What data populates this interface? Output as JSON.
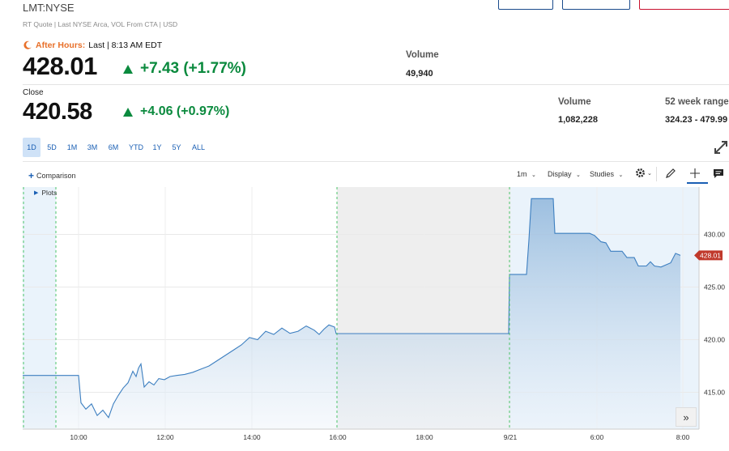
{
  "header": {
    "ticker": "LMT:NYSE",
    "subtitle": "RT Quote | Last NYSE Arca, VOL From CTA | USD"
  },
  "after_hours": {
    "label": "After Hours:",
    "time": "Last | 8:13 AM EDT",
    "price": "428.01",
    "change": "+7.43 (+1.77%)",
    "volume_label": "Volume",
    "volume": "49,940"
  },
  "close": {
    "label": "Close",
    "price": "420.58",
    "change": "+4.06 (+0.97%)",
    "volume_label": "Volume",
    "volume": "1,082,228",
    "range_label": "52 week range",
    "range": "324.23 - 479.99"
  },
  "ranges": [
    "1D",
    "5D",
    "1M",
    "3M",
    "6M",
    "YTD",
    "1Y",
    "5Y",
    "ALL"
  ],
  "active_range": "1D",
  "toolbar": {
    "comparison": "Comparison",
    "interval": "1m",
    "display": "Display",
    "studies": "Studies",
    "plots": "Plots"
  },
  "colors": {
    "up": "#0b8a3e",
    "accent": "#1a5fb4",
    "line": "#3d7fc0",
    "price_tag": "#c0392b",
    "after_hours": "#e8702a"
  },
  "chart_data": {
    "type": "area",
    "series": [
      {
        "values": [
          [
            0,
            416.6
          ],
          [
            69,
            416.6
          ],
          [
            72,
            414.0
          ],
          [
            78,
            413.4
          ],
          [
            85,
            413.9
          ],
          [
            92,
            412.8
          ],
          [
            99,
            413.3
          ],
          [
            106,
            412.6
          ],
          [
            112,
            413.9
          ],
          [
            118,
            414.7
          ],
          [
            124,
            415.4
          ],
          [
            130,
            415.9
          ],
          [
            136,
            417.0
          ],
          [
            140,
            416.5
          ],
          [
            143,
            417.3
          ],
          [
            146,
            417.7
          ],
          [
            150,
            415.5
          ],
          [
            156,
            416.0
          ],
          [
            162,
            415.7
          ],
          [
            168,
            416.3
          ],
          [
            175,
            416.2
          ],
          [
            182,
            416.5
          ],
          [
            190,
            416.6
          ],
          [
            200,
            416.7
          ],
          [
            210,
            416.9
          ],
          [
            220,
            417.2
          ],
          [
            230,
            417.5
          ],
          [
            240,
            418.0
          ],
          [
            250,
            418.5
          ],
          [
            260,
            419.0
          ],
          [
            270,
            419.5
          ],
          [
            280,
            420.2
          ],
          [
            290,
            420.0
          ],
          [
            300,
            420.8
          ],
          [
            310,
            420.5
          ],
          [
            320,
            421.1
          ],
          [
            330,
            420.6
          ],
          [
            340,
            420.8
          ],
          [
            350,
            421.3
          ],
          [
            360,
            420.9
          ],
          [
            366,
            420.5
          ],
          [
            372,
            421.0
          ],
          [
            378,
            421.4
          ],
          [
            385,
            421.2
          ],
          [
            387,
            420.58
          ],
          [
            600,
            420.58
          ],
          [
            601,
            426.2
          ],
          [
            622,
            426.2
          ],
          [
            625,
            429.5
          ],
          [
            628,
            433.4
          ],
          [
            655,
            433.4
          ],
          [
            657,
            430.1
          ],
          [
            700,
            430.1
          ],
          [
            706,
            429.9
          ],
          [
            714,
            429.3
          ],
          [
            720,
            429.2
          ],
          [
            726,
            428.4
          ],
          [
            740,
            428.4
          ],
          [
            746,
            427.8
          ],
          [
            755,
            427.8
          ],
          [
            760,
            427.0
          ],
          [
            770,
            427.0
          ],
          [
            775,
            427.4
          ],
          [
            780,
            427.0
          ],
          [
            788,
            426.9
          ],
          [
            800,
            427.3
          ],
          [
            806,
            428.2
          ],
          [
            812,
            428.01
          ]
        ]
      }
    ],
    "xticks": [
      "10:00",
      "12:00",
      "14:00",
      "16:00",
      "18:00",
      "9/21",
      "6:00",
      "8:00"
    ],
    "yticks": [
      "415.00",
      "420.00",
      "425.00",
      "430.00"
    ],
    "ylim": [
      411.5,
      434.5
    ],
    "last_price_tag": "428.01",
    "sessions": [
      "pre-market",
      "regular",
      "after-hours (shaded)",
      "pre-market next day"
    ],
    "grid": true
  }
}
